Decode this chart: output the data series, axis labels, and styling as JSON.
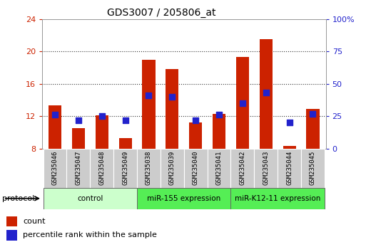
{
  "title": "GDS3007 / 205806_at",
  "samples": [
    "GSM235046",
    "GSM235047",
    "GSM235048",
    "GSM235049",
    "GSM235038",
    "GSM235039",
    "GSM235040",
    "GSM235041",
    "GSM235042",
    "GSM235043",
    "GSM235044",
    "GSM235045"
  ],
  "count_values": [
    13.3,
    10.5,
    12.1,
    9.3,
    19.0,
    17.8,
    11.2,
    12.3,
    19.3,
    21.5,
    8.3,
    12.9
  ],
  "percentile_values": [
    26,
    22,
    25,
    22,
    41,
    40,
    22,
    26,
    35,
    43,
    20,
    27
  ],
  "ylim_left": [
    8,
    24
  ],
  "ylim_right": [
    0,
    100
  ],
  "yticks_left": [
    8,
    12,
    16,
    20,
    24
  ],
  "yticks_right": [
    0,
    25,
    50,
    75,
    100
  ],
  "bar_color": "#cc2200",
  "square_color": "#2222cc",
  "bar_bottom": 8,
  "bar_width": 0.55,
  "groups": [
    {
      "label": "control",
      "start": 0,
      "end": 4,
      "color": "#ccffcc"
    },
    {
      "label": "miR-155 expression",
      "start": 4,
      "end": 8,
      "color": "#55ee55"
    },
    {
      "label": "miR-K12-11 expression",
      "start": 8,
      "end": 12,
      "color": "#55ee55"
    }
  ],
  "sample_box_color": "#cccccc",
  "bg_color": "#ffffff",
  "tick_label_color_left": "#cc2200",
  "tick_label_color_right": "#2222cc",
  "grid_color": "#333333"
}
